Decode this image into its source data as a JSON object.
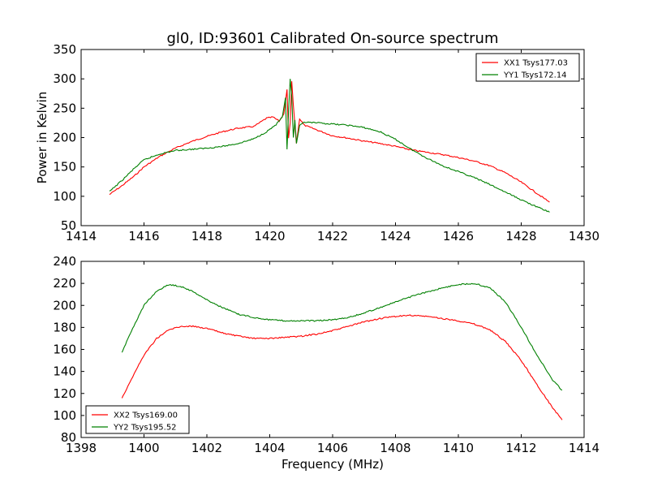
{
  "title": "gl0, ID:93601 Calibrated On-source spectrum",
  "chart_data": [
    {
      "type": "line",
      "xlabel": "",
      "ylabel": "Power in Kelvin",
      "xlim": [
        1414,
        1430
      ],
      "ylim": [
        50,
        350
      ],
      "xticks": [
        1414,
        1416,
        1418,
        1420,
        1422,
        1424,
        1426,
        1428,
        1430
      ],
      "yticks": [
        50,
        100,
        150,
        200,
        250,
        300,
        350
      ],
      "legend_position": "top-right",
      "series": [
        {
          "name": "XX1 Tsys177.03",
          "color": "#ff0000",
          "x": [
            1414.9,
            1415.3,
            1415.7,
            1416.0,
            1416.5,
            1417.0,
            1417.5,
            1418.0,
            1418.5,
            1419.0,
            1419.5,
            1419.9,
            1420.1,
            1420.3,
            1420.45,
            1420.55,
            1420.6,
            1420.65,
            1420.7,
            1420.75,
            1420.85,
            1420.95,
            1421.1,
            1421.5,
            1422.0,
            1422.5,
            1423.0,
            1423.5,
            1424.0,
            1424.5,
            1425.0,
            1425.5,
            1426.0,
            1426.5,
            1427.0,
            1427.5,
            1428.0,
            1428.5,
            1428.9
          ],
          "y": [
            103,
            118,
            135,
            150,
            168,
            182,
            193,
            202,
            210,
            216,
            219,
            233,
            235,
            228,
            240,
            282,
            200,
            225,
            296,
            255,
            190,
            232,
            221,
            213,
            203,
            199,
            194,
            190,
            185,
            179,
            175,
            171,
            166,
            160,
            152,
            140,
            124,
            105,
            90
          ]
        },
        {
          "name": "YY1 Tsys172.14",
          "color": "#008000",
          "x": [
            1414.9,
            1415.3,
            1415.7,
            1416.0,
            1416.5,
            1417.0,
            1417.5,
            1418.0,
            1418.5,
            1419.0,
            1419.5,
            1419.9,
            1420.2,
            1420.4,
            1420.5,
            1420.55,
            1420.6,
            1420.65,
            1420.7,
            1420.75,
            1420.8,
            1420.85,
            1420.95,
            1421.1,
            1421.5,
            1422.0,
            1422.5,
            1423.0,
            1423.5,
            1424.0,
            1424.5,
            1425.0,
            1425.5,
            1426.0,
            1426.5,
            1427.0,
            1427.5,
            1428.0,
            1428.5,
            1428.9
          ],
          "y": [
            108,
            127,
            148,
            162,
            172,
            178,
            180,
            182,
            185,
            190,
            198,
            210,
            222,
            235,
            268,
            180,
            245,
            300,
            270,
            200,
            230,
            190,
            220,
            226,
            225,
            223,
            221,
            217,
            210,
            197,
            180,
            165,
            152,
            142,
            132,
            120,
            107,
            94,
            82,
            73
          ]
        }
      ]
    },
    {
      "type": "line",
      "xlabel": "Frequency (MHz)",
      "ylabel": "",
      "xlim": [
        1398,
        1414
      ],
      "ylim": [
        80,
        240
      ],
      "xticks": [
        1398,
        1400,
        1402,
        1404,
        1406,
        1408,
        1410,
        1412,
        1414
      ],
      "yticks": [
        80,
        100,
        120,
        140,
        160,
        180,
        200,
        220,
        240
      ],
      "legend_position": "bottom-left",
      "series": [
        {
          "name": "XX2 Tsys169.00",
          "color": "#ff0000",
          "x": [
            1399.3,
            1399.6,
            1400.0,
            1400.4,
            1400.8,
            1401.2,
            1401.6,
            1402.0,
            1402.5,
            1403.0,
            1403.5,
            1404.0,
            1404.5,
            1405.0,
            1405.5,
            1406.0,
            1406.5,
            1407.0,
            1407.5,
            1408.0,
            1408.5,
            1409.0,
            1409.5,
            1410.0,
            1410.5,
            1411.0,
            1411.5,
            1412.0,
            1412.5,
            1413.0,
            1413.3
          ],
          "y": [
            116,
            133,
            155,
            170,
            178,
            181,
            181,
            179,
            175,
            172,
            170,
            170,
            171,
            172,
            174,
            177,
            181,
            185,
            188,
            190,
            191,
            190,
            188,
            186,
            183,
            178,
            167,
            150,
            128,
            107,
            96
          ]
        },
        {
          "name": "YY2 Tsys195.52",
          "color": "#008000",
          "x": [
            1399.3,
            1399.6,
            1400.0,
            1400.4,
            1400.8,
            1401.2,
            1401.6,
            1402.0,
            1402.5,
            1403.0,
            1403.5,
            1404.0,
            1404.5,
            1405.0,
            1405.5,
            1406.0,
            1406.5,
            1407.0,
            1407.5,
            1408.0,
            1408.5,
            1409.0,
            1409.5,
            1410.0,
            1410.5,
            1411.0,
            1411.5,
            1412.0,
            1412.5,
            1413.0,
            1413.3
          ],
          "y": [
            157,
            177,
            200,
            213,
            219,
            217,
            212,
            205,
            198,
            192,
            189,
            187,
            186,
            186,
            186,
            187,
            189,
            193,
            198,
            203,
            208,
            212,
            216,
            219,
            220,
            216,
            203,
            180,
            155,
            132,
            123
          ]
        }
      ]
    }
  ]
}
